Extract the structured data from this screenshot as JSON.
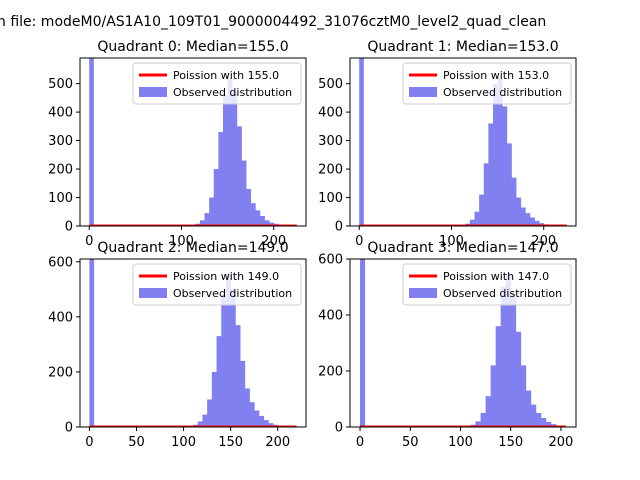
{
  "figure_title": "n file: modeM0/AS1A10_109T01_9000004492_31076cztM0_level2_quad_clean",
  "colors": {
    "histogram": "#8080f0",
    "poisson": "#ff0000"
  },
  "chart_data": [
    {
      "type": "bar",
      "title": "Quadrant 0: Median=155.0",
      "median": 155.0,
      "xlim": [
        -10,
        235
      ],
      "ylim": [
        0,
        590
      ],
      "xticks": [
        0,
        100,
        200
      ],
      "yticks": [
        0,
        100,
        200,
        300,
        400,
        500
      ],
      "legend": {
        "position": "top-right",
        "entries": [
          "Poission with 155.0",
          "Observed distribution"
        ]
      },
      "spike": {
        "x": 0,
        "value": 590
      },
      "histogram": {
        "bin_width": 5,
        "start": 110,
        "values": [
          3,
          8,
          20,
          45,
          100,
          200,
          330,
          460,
          520,
          470,
          350,
          230,
          130,
          80,
          55,
          35,
          20,
          12,
          8,
          5,
          3,
          2
        ]
      },
      "poisson": {
        "lambda": 155.0,
        "scale": 5,
        "x_range": [
          0,
          225
        ]
      }
    },
    {
      "type": "bar",
      "title": "Quadrant 1: Median=153.0",
      "median": 153.0,
      "xlim": [
        -10,
        235
      ],
      "ylim": [
        0,
        590
      ],
      "xticks": [
        0,
        100,
        200
      ],
      "yticks": [
        0,
        100,
        200,
        300,
        400,
        500
      ],
      "legend": {
        "position": "top-right",
        "entries": [
          "Poission with 153.0",
          "Observed distribution"
        ]
      },
      "spike": {
        "x": 0,
        "value": 590
      },
      "histogram": {
        "bin_width": 5,
        "start": 110,
        "values": [
          3,
          8,
          22,
          50,
          110,
          220,
          360,
          500,
          520,
          420,
          290,
          170,
          100,
          65,
          45,
          30,
          18,
          10,
          6,
          4,
          2,
          1
        ]
      },
      "poisson": {
        "lambda": 153.0,
        "scale": 5,
        "x_range": [
          0,
          225
        ]
      }
    },
    {
      "type": "bar",
      "title": "Quadrant 2: Median=149.0",
      "median": 149.0,
      "xlim": [
        -10,
        230
      ],
      "ylim": [
        0,
        610
      ],
      "xticks": [
        0,
        50,
        100,
        150,
        200
      ],
      "yticks": [
        0,
        200,
        400,
        600
      ],
      "legend": {
        "position": "top-right",
        "entries": [
          "Poission with 149.0",
          "Observed distribution"
        ]
      },
      "spike": {
        "x": 0,
        "value": 610
      },
      "histogram": {
        "bin_width": 5,
        "start": 105,
        "values": [
          3,
          8,
          20,
          45,
          100,
          200,
          330,
          480,
          560,
          500,
          370,
          240,
          140,
          90,
          60,
          40,
          25,
          14,
          8,
          4,
          2,
          1
        ]
      },
      "poisson": {
        "lambda": 149.0,
        "scale": 5,
        "x_range": [
          0,
          220
        ]
      }
    },
    {
      "type": "bar",
      "title": "Quadrant 3: Median=147.0",
      "median": 147.0,
      "xlim": [
        -10,
        215
      ],
      "ylim": [
        0,
        600
      ],
      "xticks": [
        0,
        50,
        100,
        150,
        200
      ],
      "yticks": [
        0,
        200,
        400,
        600
      ],
      "legend": {
        "position": "top-right",
        "entries": [
          "Poission with 147.0",
          "Observed distribution"
        ]
      },
      "spike": {
        "x": 0,
        "value": 600
      },
      "histogram": {
        "bin_width": 5,
        "start": 105,
        "values": [
          3,
          8,
          20,
          50,
          110,
          220,
          360,
          500,
          550,
          480,
          340,
          220,
          130,
          80,
          50,
          32,
          18,
          10,
          5,
          2
        ]
      },
      "poisson": {
        "lambda": 147.0,
        "scale": 5,
        "x_range": [
          0,
          205
        ]
      }
    }
  ]
}
